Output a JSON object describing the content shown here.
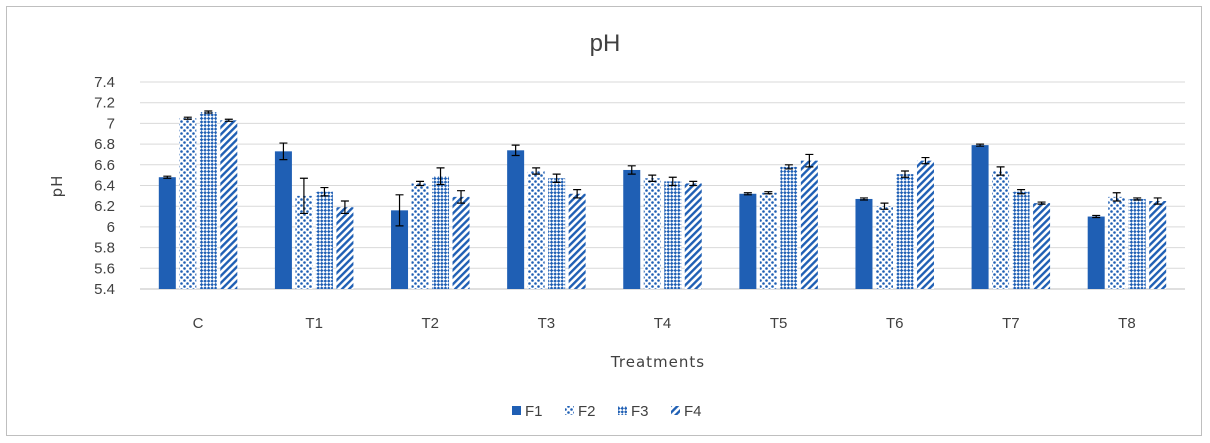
{
  "chart_data": {
    "type": "bar",
    "title": "pH",
    "xlabel": "Treatments",
    "ylabel": "pH",
    "ylim": [
      5.4,
      7.4
    ],
    "yticks": [
      "5.4",
      "5.6",
      "5.8",
      "6",
      "6.2",
      "6.4",
      "6.6",
      "6.8",
      "7",
      "7.2",
      "7.4"
    ],
    "categories": [
      "C",
      "T1",
      "T2",
      "T3",
      "T4",
      "T5",
      "T6",
      "T7",
      "T8"
    ],
    "grid": true,
    "legend_position": "bottom",
    "series": [
      {
        "name": "F1",
        "pattern": "solid",
        "color": "#1f5fb4",
        "values": [
          6.48,
          6.73,
          6.16,
          6.74,
          6.55,
          6.32,
          6.27,
          6.79,
          6.1
        ],
        "errors": [
          0.01,
          0.08,
          0.15,
          0.05,
          0.04,
          0.01,
          0.01,
          0.01,
          0.01
        ]
      },
      {
        "name": "F2",
        "pattern": "dots",
        "color": "#1f5fb4",
        "values": [
          7.05,
          6.3,
          6.42,
          6.54,
          6.47,
          6.33,
          6.2,
          6.54,
          6.29
        ],
        "errors": [
          0.01,
          0.17,
          0.02,
          0.03,
          0.03,
          0.01,
          0.03,
          0.04,
          0.04
        ]
      },
      {
        "name": "F3",
        "pattern": "checker",
        "color": "#1f5fb4",
        "values": [
          7.11,
          6.34,
          6.49,
          6.47,
          6.44,
          6.58,
          6.51,
          6.34,
          6.27
        ],
        "errors": [
          0.01,
          0.04,
          0.08,
          0.04,
          0.04,
          0.02,
          0.03,
          0.02,
          0.01
        ]
      },
      {
        "name": "F4",
        "pattern": "diagonal",
        "color": "#1f5fb4",
        "values": [
          7.03,
          6.19,
          6.29,
          6.32,
          6.42,
          6.64,
          6.64,
          6.23,
          6.25
        ],
        "errors": [
          0.01,
          0.06,
          0.06,
          0.04,
          0.02,
          0.06,
          0.03,
          0.01,
          0.03
        ]
      }
    ]
  }
}
